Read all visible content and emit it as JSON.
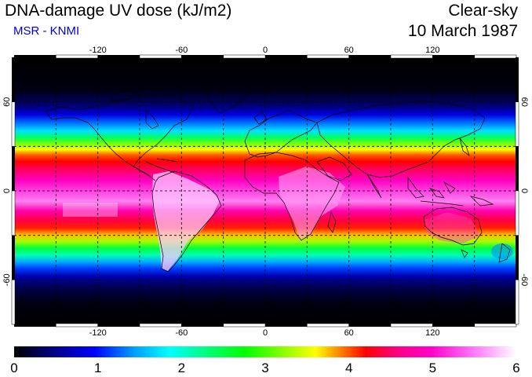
{
  "header": {
    "title": "DNA-damage UV dose (kJ/m2)",
    "source": "MSR - KNMI",
    "condition": "Clear-sky",
    "date": "10 March 1987"
  },
  "map": {
    "longitude_ticks": [
      "-120",
      "-60",
      "0",
      "60",
      "120"
    ],
    "latitude_ticks": [
      "60",
      "0",
      "-60"
    ],
    "grid": "dashed"
  },
  "colorbar": {
    "min": 0,
    "max": 6,
    "labels": [
      "0",
      "1",
      "2",
      "3",
      "4",
      "5",
      "6"
    ],
    "colors": [
      "#000000",
      "#000088",
      "#0000ff",
      "#00a0ff",
      "#00ffff",
      "#00ff80",
      "#00ff00",
      "#80ff00",
      "#ffff00",
      "#ff8000",
      "#ff0000",
      "#ff0080",
      "#ff00c8",
      "#ff80ff",
      "#ffffff"
    ]
  }
}
